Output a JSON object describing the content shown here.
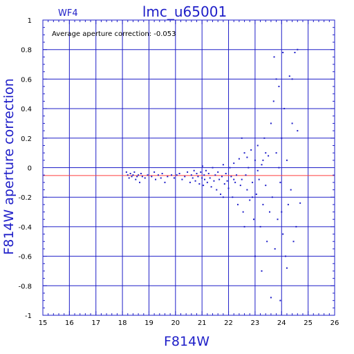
{
  "chart_data": {
    "type": "scatter",
    "panel_label": "WF4",
    "title": "lmc_u65001",
    "annotation": "Average aperture correction: -0.053",
    "xlabel": "F814W",
    "ylabel": "F814W aperture correction",
    "xlim": [
      15,
      26
    ],
    "ylim": [
      -1,
      1
    ],
    "xticks": [
      "15",
      "16",
      "17",
      "18",
      "19",
      "20",
      "21",
      "22",
      "23",
      "24",
      "25",
      "26"
    ],
    "yticks": [
      "-1",
      "-0.8",
      "-0.6",
      "-0.4",
      "-0.2",
      "0",
      "0.2",
      "0.4",
      "0.6",
      "0.8",
      "1"
    ],
    "grid": true,
    "colors": {
      "axes": "#1e1ec8",
      "points": "#1e1ec8",
      "mean_line": "#ff3c3c"
    },
    "mean_line_y": -0.053,
    "series": [
      {
        "points": [
          [
            18.15,
            -0.03
          ],
          [
            18.2,
            -0.05
          ],
          [
            18.25,
            -0.07
          ],
          [
            18.3,
            -0.04
          ],
          [
            18.35,
            -0.06
          ],
          [
            18.4,
            -0.05
          ],
          [
            18.45,
            -0.03
          ],
          [
            18.5,
            -0.08
          ],
          [
            18.55,
            -0.06
          ],
          [
            18.6,
            -0.05
          ],
          [
            18.65,
            -0.1
          ],
          [
            18.7,
            -0.04
          ],
          [
            18.75,
            -0.06
          ],
          [
            18.85,
            -0.07
          ],
          [
            18.95,
            -0.05
          ],
          [
            19.1,
            -0.06
          ],
          [
            19.2,
            -0.03
          ],
          [
            19.25,
            -0.08
          ],
          [
            19.35,
            -0.05
          ],
          [
            19.45,
            -0.07
          ],
          [
            19.5,
            -0.04
          ],
          [
            19.6,
            -0.1
          ],
          [
            19.7,
            -0.06
          ],
          [
            19.85,
            -0.05
          ],
          [
            19.95,
            -0.07
          ],
          [
            20.05,
            -0.05
          ],
          [
            20.15,
            -0.04
          ],
          [
            20.25,
            -0.08
          ],
          [
            20.35,
            -0.06
          ],
          [
            20.45,
            -0.03
          ],
          [
            20.55,
            -0.1
          ],
          [
            20.6,
            -0.05
          ],
          [
            20.65,
            -0.07
          ],
          [
            20.7,
            -0.02
          ],
          [
            20.75,
            -0.09
          ],
          [
            20.8,
            -0.04
          ],
          [
            20.85,
            -0.06
          ],
          [
            20.9,
            -0.11
          ],
          [
            20.95,
            -0.03
          ],
          [
            21.0,
            -0.07
          ],
          [
            21.02,
            0.01
          ],
          [
            21.05,
            -0.12
          ],
          [
            21.08,
            -0.05
          ],
          [
            21.1,
            -0.08
          ],
          [
            21.15,
            -0.02
          ],
          [
            21.2,
            -0.1
          ],
          [
            21.25,
            -0.04
          ],
          [
            21.3,
            -0.07
          ],
          [
            21.35,
            -0.13
          ],
          [
            21.4,
            0.0
          ],
          [
            21.45,
            -0.09
          ],
          [
            21.5,
            -0.05
          ],
          [
            21.55,
            -0.15
          ],
          [
            21.6,
            -0.03
          ],
          [
            21.65,
            -0.08
          ],
          [
            21.7,
            -0.18
          ],
          [
            21.75,
            -0.06
          ],
          [
            21.8,
            0.02
          ],
          [
            21.85,
            -0.11
          ],
          [
            21.9,
            -0.04
          ],
          [
            21.95,
            -0.09
          ],
          [
            22.0,
            -0.14
          ],
          [
            22.05,
            0.0
          ],
          [
            22.1,
            -0.06
          ],
          [
            22.15,
            -0.2
          ],
          [
            22.2,
            0.03
          ],
          [
            22.25,
            -0.1
          ],
          [
            22.3,
            -0.05
          ],
          [
            22.35,
            -0.25
          ],
          [
            22.4,
            0.06
          ],
          [
            22.45,
            -0.12
          ],
          [
            22.5,
            -0.08
          ],
          [
            22.55,
            -0.3
          ],
          [
            22.6,
            0.1
          ],
          [
            22.65,
            -0.05
          ],
          [
            22.7,
            -0.15
          ],
          [
            22.75,
            0.0
          ],
          [
            22.8,
            -0.22
          ],
          [
            22.85,
            0.12
          ],
          [
            22.9,
            -0.1
          ],
          [
            22.95,
            -0.35
          ],
          [
            23.0,
            0.05
          ],
          [
            23.05,
            -0.18
          ],
          [
            23.1,
            0.15
          ],
          [
            23.15,
            -0.08
          ],
          [
            23.2,
            -0.4
          ],
          [
            23.25,
            0.02
          ],
          [
            23.3,
            -0.25
          ],
          [
            23.35,
            0.2
          ],
          [
            23.4,
            -0.12
          ],
          [
            23.45,
            -0.5
          ],
          [
            23.5,
            0.08
          ],
          [
            23.55,
            -0.3
          ],
          [
            23.6,
            0.3
          ],
          [
            23.65,
            -0.2
          ],
          [
            23.7,
            0.45
          ],
          [
            23.72,
            0.75
          ],
          [
            23.75,
            -0.55
          ],
          [
            23.8,
            0.1
          ],
          [
            23.85,
            -0.35
          ],
          [
            23.9,
            0.55
          ],
          [
            23.95,
            -0.1
          ],
          [
            24.0,
            0.2
          ],
          [
            24.05,
            -0.45
          ],
          [
            24.1,
            0.4
          ],
          [
            24.15,
            -0.6
          ],
          [
            24.2,
            0.05
          ],
          [
            24.25,
            -0.25
          ],
          [
            24.3,
            0.62
          ],
          [
            24.35,
            -0.15
          ],
          [
            24.4,
            0.3
          ],
          [
            24.45,
            -0.5
          ],
          [
            24.5,
            0.78
          ],
          [
            24.55,
            -0.4
          ],
          [
            24.6,
            0.25
          ],
          [
            24.7,
            -0.24
          ],
          [
            23.95,
            -0.9
          ],
          [
            23.25,
            -0.7
          ],
          [
            23.4,
            0.1
          ],
          [
            24.2,
            -0.68
          ],
          [
            24.05,
            0.78
          ],
          [
            23.9,
            0.0
          ],
          [
            22.7,
            0.07
          ],
          [
            22.9,
            -0.2
          ],
          [
            23.1,
            -0.02
          ],
          [
            22.5,
            0.2
          ],
          [
            21.8,
            -0.2
          ],
          [
            23.6,
            -0.88
          ],
          [
            24.6,
            0.8
          ],
          [
            24.4,
            0.6
          ],
          [
            23.3,
            0.05
          ],
          [
            23.8,
            0.6
          ],
          [
            22.2,
            -0.08
          ],
          [
            22.6,
            -0.4
          ],
          [
            23.0,
            -0.6
          ],
          [
            24.0,
            -0.3
          ]
        ]
      }
    ]
  }
}
